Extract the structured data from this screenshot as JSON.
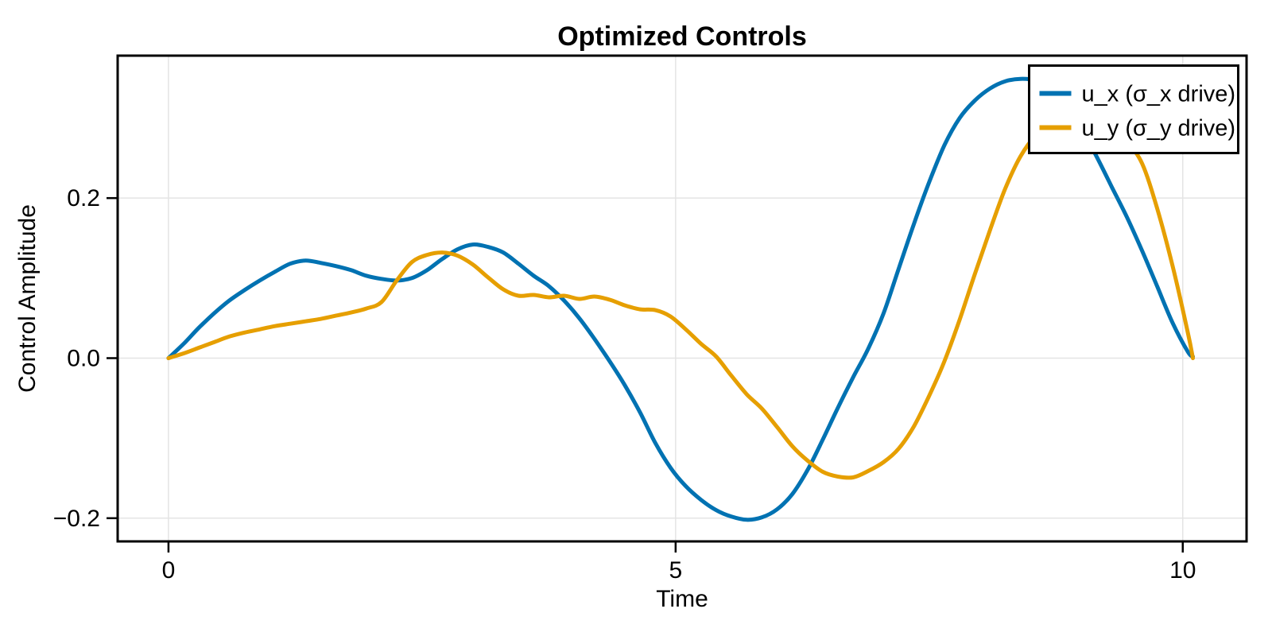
{
  "figure": {
    "background": "#ffffff",
    "frame_color": "#000000",
    "grid_color": "#e4e4e4",
    "tick_color": "#000000"
  },
  "chart_data": {
    "type": "line",
    "title": "Optimized Controls",
    "xlabel": "Time",
    "ylabel": "Control Amplitude",
    "xlim": [
      -0.501,
      10.629
    ],
    "ylim": [
      -0.229,
      0.378
    ],
    "grid": true,
    "legend_position": "top-right",
    "xticks": [
      {
        "value": 0,
        "label": "0"
      },
      {
        "value": 5,
        "label": "5"
      },
      {
        "value": 10,
        "label": "10"
      }
    ],
    "yticks": [
      {
        "value": -0.2,
        "label": "−0.2"
      },
      {
        "value": 0.0,
        "label": "0.0"
      },
      {
        "value": 0.2,
        "label": "0.2"
      }
    ],
    "x": [
      0.0,
      0.15,
      0.3,
      0.45,
      0.6,
      0.75,
      0.9,
      1.05,
      1.2,
      1.35,
      1.5,
      1.65,
      1.8,
      1.95,
      2.1,
      2.25,
      2.4,
      2.55,
      2.7,
      2.85,
      3.0,
      3.15,
      3.3,
      3.45,
      3.6,
      3.75,
      3.9,
      4.05,
      4.2,
      4.35,
      4.5,
      4.65,
      4.8,
      4.95,
      5.1,
      5.25,
      5.4,
      5.55,
      5.7,
      5.85,
      6.0,
      6.15,
      6.3,
      6.45,
      6.6,
      6.75,
      6.9,
      7.05,
      7.2,
      7.35,
      7.5,
      7.65,
      7.8,
      7.95,
      8.1,
      8.25,
      8.4,
      8.55,
      8.7,
      8.85,
      9.0,
      9.15,
      9.3,
      9.45,
      9.6,
      9.75,
      9.9,
      10.05,
      10.1
    ],
    "series": [
      {
        "name": "u_x (σ_x drive)",
        "color": "#0072B2",
        "values": [
          0.0,
          0.018,
          0.038,
          0.056,
          0.072,
          0.085,
          0.097,
          0.108,
          0.118,
          0.122,
          0.119,
          0.115,
          0.11,
          0.103,
          0.099,
          0.097,
          0.1,
          0.11,
          0.124,
          0.136,
          0.142,
          0.139,
          0.132,
          0.118,
          0.103,
          0.09,
          0.072,
          0.05,
          0.024,
          -0.004,
          -0.034,
          -0.068,
          -0.106,
          -0.137,
          -0.16,
          -0.177,
          -0.19,
          -0.198,
          -0.202,
          -0.199,
          -0.189,
          -0.17,
          -0.14,
          -0.102,
          -0.062,
          -0.024,
          0.012,
          0.056,
          0.112,
          0.168,
          0.22,
          0.266,
          0.3,
          0.322,
          0.337,
          0.346,
          0.349,
          0.347,
          0.338,
          0.317,
          0.287,
          0.252,
          0.214,
          0.176,
          0.134,
          0.089,
          0.044,
          0.008,
          0.002
        ]
      },
      {
        "name": "u_y (σ_y drive)",
        "color": "#E69F00",
        "values": [
          0.0,
          0.006,
          0.013,
          0.02,
          0.027,
          0.032,
          0.036,
          0.04,
          0.043,
          0.046,
          0.049,
          0.053,
          0.057,
          0.062,
          0.07,
          0.097,
          0.12,
          0.129,
          0.132,
          0.128,
          0.117,
          0.101,
          0.086,
          0.078,
          0.079,
          0.076,
          0.078,
          0.074,
          0.077,
          0.073,
          0.066,
          0.061,
          0.06,
          0.052,
          0.036,
          0.018,
          0.002,
          -0.022,
          -0.045,
          -0.063,
          -0.086,
          -0.11,
          -0.128,
          -0.142,
          -0.148,
          -0.149,
          -0.141,
          -0.13,
          -0.113,
          -0.085,
          -0.047,
          -0.004,
          0.048,
          0.105,
          0.16,
          0.212,
          0.252,
          0.278,
          0.29,
          0.296,
          0.299,
          0.296,
          0.287,
          0.27,
          0.243,
          0.186,
          0.115,
          0.032,
          0.0
        ]
      }
    ]
  }
}
